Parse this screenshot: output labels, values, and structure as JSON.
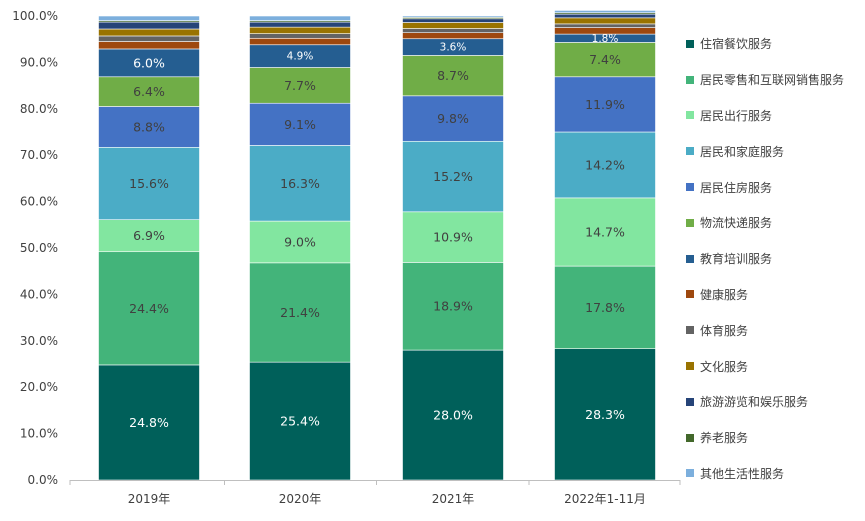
{
  "chart_data": {
    "type": "bar",
    "stacked": true,
    "categories": [
      "2019年",
      "2020年",
      "2021年",
      "2022年1-11月"
    ],
    "ylim": [
      0,
      100
    ],
    "yticks": [
      "0.0%",
      "10.0%",
      "20.0%",
      "30.0%",
      "40.0%",
      "50.0%",
      "60.0%",
      "70.0%",
      "80.0%",
      "90.0%",
      "100.0%"
    ],
    "legend_position": "right",
    "grid": false,
    "series": [
      {
        "name": "住宿餐饮服务",
        "color": "#00605a",
        "label_color": "#ffffff",
        "values": [
          24.8,
          25.4,
          28.0,
          28.3
        ],
        "labels": [
          "24.8%",
          "25.4%",
          "28.0%",
          "28.3%"
        ]
      },
      {
        "name": "居民零售和互联网销售服务",
        "color": "#43b47a",
        "label_color": "#404040",
        "values": [
          24.4,
          21.4,
          18.9,
          17.8
        ],
        "labels": [
          "24.4%",
          "21.4%",
          "18.9%",
          "17.8%"
        ]
      },
      {
        "name": "居民出行服务",
        "color": "#82e6a0",
        "label_color": "#404040",
        "values": [
          6.9,
          9.0,
          10.9,
          14.7
        ],
        "labels": [
          "6.9%",
          "9.0%",
          "10.9%",
          "14.7%"
        ]
      },
      {
        "name": "居民和家庭服务",
        "color": "#4bacc6",
        "label_color": "#404040",
        "values": [
          15.6,
          16.3,
          15.2,
          14.2
        ],
        "labels": [
          "15.6%",
          "16.3%",
          "15.2%",
          "14.2%"
        ]
      },
      {
        "name": "居民住房服务",
        "color": "#4472c4",
        "label_color": "#404040",
        "values": [
          8.8,
          9.1,
          9.8,
          11.9
        ],
        "labels": [
          "8.8%",
          "9.1%",
          "9.8%",
          "11.9%"
        ]
      },
      {
        "name": "物流快递服务",
        "color": "#70ad47",
        "label_color": "#404040",
        "values": [
          6.4,
          7.7,
          8.7,
          7.4
        ],
        "labels": [
          "6.4%",
          "7.7%",
          "8.7%",
          "7.4%"
        ]
      },
      {
        "name": "教育培训服务",
        "color": "#255e91",
        "label_color": "#ffffff",
        "values": [
          6.0,
          4.9,
          3.6,
          1.8
        ],
        "labels": [
          "6.0%",
          "4.9%",
          "3.6%",
          "1.8%"
        ]
      },
      {
        "name": "健康服务",
        "color": "#9e480e",
        "values": [
          1.6,
          1.4,
          1.3,
          1.4
        ]
      },
      {
        "name": "体育服务",
        "color": "#636363",
        "values": [
          1.2,
          1.0,
          0.9,
          0.8
        ]
      },
      {
        "name": "文化服务",
        "color": "#997300",
        "values": [
          1.5,
          1.4,
          1.3,
          1.3
        ]
      },
      {
        "name": "旅游游览和娱乐服务",
        "color": "#264478",
        "values": [
          1.5,
          1.1,
          0.8,
          0.8
        ]
      },
      {
        "name": "养老服务",
        "color": "#43682b",
        "values": [
          0.3,
          0.3,
          0.3,
          0.3
        ]
      },
      {
        "name": "其他生活性服务",
        "color": "#7cafdd",
        "values": [
          1.0,
          1.0,
          0.3,
          0.5
        ]
      }
    ]
  }
}
